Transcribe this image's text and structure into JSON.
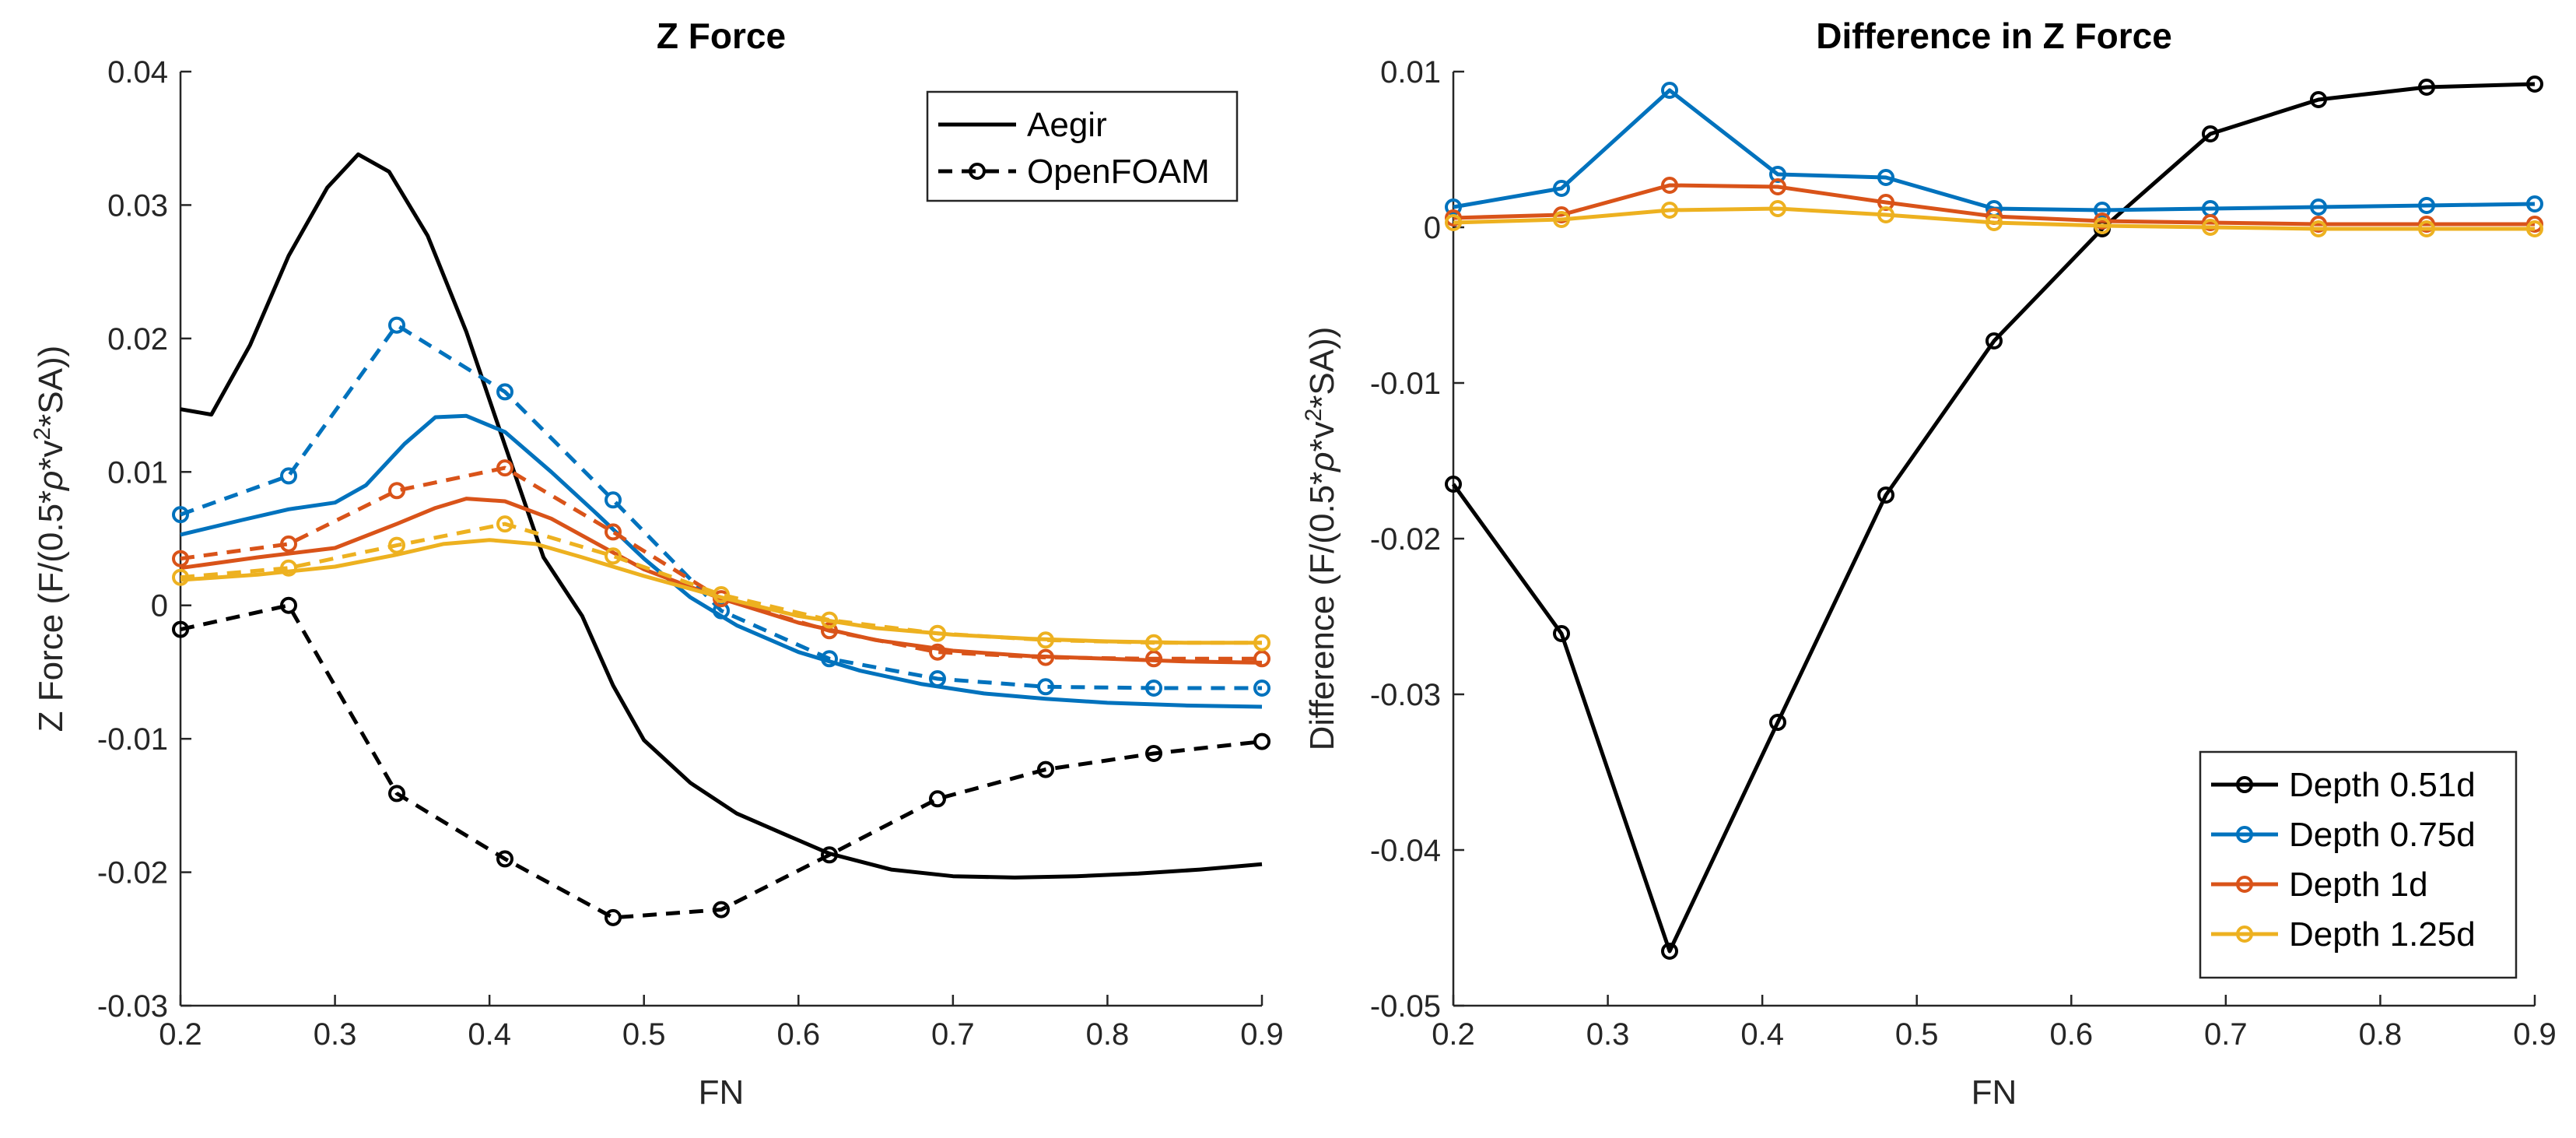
{
  "chart_data": [
    {
      "type": "line",
      "title": "Z Force",
      "xlabel": "FN",
      "ylabel": "Z Force (F/(0.5*ρ*v²*SA))",
      "ylabel_parts": [
        "Z Force (F/(0.5*",
        "ρ",
        "*v",
        "2",
        "*SA))"
      ],
      "xlim": [
        0.2,
        0.9
      ],
      "ylim": [
        -0.03,
        0.04
      ],
      "xticks": [
        0.2,
        0.3,
        0.4,
        0.5,
        0.6,
        0.7,
        0.8,
        0.9
      ],
      "xtick_labels": [
        "0.2",
        "0.3",
        "0.4",
        "0.5",
        "0.6",
        "0.7",
        "0.8",
        "0.9"
      ],
      "yticks": [
        -0.03,
        -0.02,
        -0.01,
        0,
        0.01,
        0.02,
        0.03,
        0.04
      ],
      "ytick_labels": [
        "-0.03",
        "-0.02",
        "-0.01",
        "0",
        "0.01",
        "0.02",
        "0.03",
        "0.04"
      ],
      "legend": {
        "location": "top-right",
        "entries": [
          {
            "label": "Aegir",
            "style": "solid",
            "marker": false,
            "color": "#000000"
          },
          {
            "label": "OpenFOAM",
            "style": "dashed",
            "marker": true,
            "color": "#000000"
          }
        ]
      },
      "series": [
        {
          "name": "Aegir Depth 0.51d",
          "style": "solid",
          "marker": false,
          "color": "#000000",
          "x": [
            0.2,
            0.22,
            0.245,
            0.27,
            0.295,
            0.315,
            0.335,
            0.36,
            0.385,
            0.41,
            0.435,
            0.46,
            0.48,
            0.5,
            0.53,
            0.56,
            0.59,
            0.62,
            0.66,
            0.7,
            0.74,
            0.78,
            0.82,
            0.86,
            0.9
          ],
          "y": [
            0.0147,
            0.0143,
            0.0195,
            0.0262,
            0.0313,
            0.0338,
            0.0325,
            0.0277,
            0.0205,
            0.012,
            0.0036,
            -0.0008,
            -0.006,
            -0.0101,
            -0.0133,
            -0.0156,
            -0.0171,
            -0.0186,
            -0.0198,
            -0.0203,
            -0.0204,
            -0.0203,
            -0.0201,
            -0.0198,
            -0.0194
          ]
        },
        {
          "name": "OpenFOAM Depth 0.51d",
          "style": "dashed",
          "marker": true,
          "color": "#000000",
          "x": [
            0.2,
            0.27,
            0.34,
            0.41,
            0.48,
            0.55,
            0.62,
            0.69,
            0.76,
            0.83,
            0.9
          ],
          "y": [
            -0.0018,
            0,
            -0.0141,
            -0.019,
            -0.0234,
            -0.0228,
            -0.0187,
            -0.0145,
            -0.0123,
            -0.0111,
            -0.0102
          ]
        },
        {
          "name": "Aegir Depth 0.75d",
          "style": "solid",
          "marker": false,
          "color": "#0072BD",
          "x": [
            0.2,
            0.24,
            0.27,
            0.3,
            0.32,
            0.345,
            0.365,
            0.385,
            0.41,
            0.44,
            0.47,
            0.5,
            0.53,
            0.56,
            0.6,
            0.64,
            0.68,
            0.72,
            0.76,
            0.8,
            0.85,
            0.9
          ],
          "y": [
            0.0053,
            0.0064,
            0.0072,
            0.0077,
            0.009,
            0.0121,
            0.0141,
            0.0142,
            0.013,
            0.01,
            0.0068,
            0.0035,
            0.0006,
            -0.0015,
            -0.0035,
            -0.0049,
            -0.0059,
            -0.0066,
            -0.007,
            -0.0073,
            -0.0075,
            -0.0076
          ]
        },
        {
          "name": "OpenFOAM Depth 0.75d",
          "style": "dashed",
          "marker": true,
          "color": "#0072BD",
          "x": [
            0.2,
            0.27,
            0.34,
            0.41,
            0.48,
            0.55,
            0.62,
            0.69,
            0.76,
            0.83,
            0.9
          ],
          "y": [
            0.0068,
            0.0097,
            0.021,
            0.016,
            0.0079,
            -0.0004,
            -0.004,
            -0.0055,
            -0.0061,
            -0.0062,
            -0.0062
          ]
        },
        {
          "name": "Aegir Depth 1d",
          "style": "solid",
          "marker": false,
          "color": "#D95319",
          "x": [
            0.2,
            0.25,
            0.3,
            0.34,
            0.365,
            0.385,
            0.41,
            0.44,
            0.47,
            0.5,
            0.55,
            0.6,
            0.65,
            0.7,
            0.75,
            0.8,
            0.85,
            0.9
          ],
          "y": [
            0.0028,
            0.0036,
            0.0043,
            0.0061,
            0.0073,
            0.008,
            0.0078,
            0.0065,
            0.0046,
            0.0027,
            0.0005,
            -0.0013,
            -0.0026,
            -0.0034,
            -0.0038,
            -0.004,
            -0.0042,
            -0.0043
          ]
        },
        {
          "name": "OpenFOAM Depth 1d",
          "style": "dashed",
          "marker": true,
          "color": "#D95319",
          "x": [
            0.2,
            0.27,
            0.34,
            0.41,
            0.48,
            0.55,
            0.62,
            0.69,
            0.76,
            0.83,
            0.9
          ],
          "y": [
            0.0035,
            0.0046,
            0.0086,
            0.0103,
            0.0055,
            0.0005,
            -0.0019,
            -0.0035,
            -0.0039,
            -0.004,
            -0.004
          ]
        },
        {
          "name": "Aegir Depth 1.25d",
          "style": "solid",
          "marker": false,
          "color": "#EDB120",
          "x": [
            0.2,
            0.25,
            0.3,
            0.34,
            0.37,
            0.4,
            0.43,
            0.46,
            0.5,
            0.55,
            0.6,
            0.65,
            0.7,
            0.75,
            0.8,
            0.85,
            0.9
          ],
          "y": [
            0.0019,
            0.0023,
            0.0029,
            0.0038,
            0.0046,
            0.0049,
            0.0046,
            0.0036,
            0.0022,
            0.0006,
            -0.0008,
            -0.0017,
            -0.0022,
            -0.0025,
            -0.0027,
            -0.0028,
            -0.0028
          ]
        },
        {
          "name": "OpenFOAM Depth 1.25d",
          "style": "dashed",
          "marker": true,
          "color": "#EDB120",
          "x": [
            0.2,
            0.27,
            0.34,
            0.41,
            0.48,
            0.55,
            0.62,
            0.69,
            0.76,
            0.83,
            0.9
          ],
          "y": [
            0.0021,
            0.0028,
            0.0045,
            0.0061,
            0.0037,
            0.0008,
            -0.0011,
            -0.0021,
            -0.0026,
            -0.0028,
            -0.0028
          ]
        }
      ]
    },
    {
      "type": "line",
      "title": "Difference in Z Force",
      "xlabel": "FN",
      "ylabel": "Difference (F/(0.5*ρ*v²*SA))",
      "ylabel_parts": [
        "Difference (F/(0.5*",
        "ρ",
        "*v",
        "2",
        "*SA))"
      ],
      "xlim": [
        0.2,
        0.9
      ],
      "ylim": [
        -0.05,
        0.01
      ],
      "xticks": [
        0.2,
        0.3,
        0.4,
        0.5,
        0.6,
        0.7,
        0.8,
        0.9
      ],
      "xtick_labels": [
        "0.2",
        "0.3",
        "0.4",
        "0.5",
        "0.6",
        "0.7",
        "0.8",
        "0.9"
      ],
      "yticks": [
        -0.05,
        -0.04,
        -0.03,
        -0.02,
        -0.01,
        0,
        0.01
      ],
      "ytick_labels": [
        "-0.05",
        "-0.04",
        "-0.03",
        "-0.02",
        "-0.01",
        "0",
        "0.01"
      ],
      "legend": {
        "location": "bottom-right",
        "entries": [
          {
            "label": "Depth 0.51d",
            "style": "solid",
            "marker": true,
            "color": "#000000"
          },
          {
            "label": "Depth 0.75d",
            "style": "solid",
            "marker": true,
            "color": "#0072BD"
          },
          {
            "label": "Depth 1d",
            "style": "solid",
            "marker": true,
            "color": "#D95319"
          },
          {
            "label": "Depth 1.25d",
            "style": "solid",
            "marker": true,
            "color": "#EDB120"
          }
        ]
      },
      "series": [
        {
          "name": "Depth 0.51d",
          "style": "solid",
          "marker": true,
          "color": "#000000",
          "x": [
            0.2,
            0.27,
            0.34,
            0.41,
            0.48,
            0.55,
            0.62,
            0.69,
            0.76,
            0.83,
            0.9
          ],
          "y": [
            -0.0165,
            -0.0261,
            -0.0465,
            -0.0318,
            -0.0172,
            -0.0073,
            -0.0001,
            0.006,
            0.0082,
            0.009,
            0.0092
          ]
        },
        {
          "name": "Depth 0.75d",
          "style": "solid",
          "marker": true,
          "color": "#0072BD",
          "x": [
            0.2,
            0.27,
            0.34,
            0.41,
            0.48,
            0.55,
            0.62,
            0.69,
            0.76,
            0.83,
            0.9
          ],
          "y": [
            0.0013,
            0.0025,
            0.0088,
            0.0034,
            0.0032,
            0.0012,
            0.0011,
            0.0012,
            0.0013,
            0.0014,
            0.0015
          ]
        },
        {
          "name": "Depth 1d",
          "style": "solid",
          "marker": true,
          "color": "#D95319",
          "x": [
            0.2,
            0.27,
            0.34,
            0.41,
            0.48,
            0.55,
            0.62,
            0.69,
            0.76,
            0.83,
            0.9
          ],
          "y": [
            0.0006,
            0.0008,
            0.0027,
            0.0026,
            0.0016,
            0.0007,
            0.0004,
            0.0003,
            0.0002,
            0.0002,
            0.0002
          ]
        },
        {
          "name": "Depth 1.25d",
          "style": "solid",
          "marker": true,
          "color": "#EDB120",
          "x": [
            0.2,
            0.27,
            0.34,
            0.41,
            0.48,
            0.55,
            0.62,
            0.69,
            0.76,
            0.83,
            0.9
          ],
          "y": [
            0.0003,
            0.0005,
            0.0011,
            0.0012,
            0.0008,
            0.0003,
            0.0001,
            0.0,
            -0.0001,
            -0.0001,
            -0.0001
          ]
        }
      ]
    }
  ]
}
